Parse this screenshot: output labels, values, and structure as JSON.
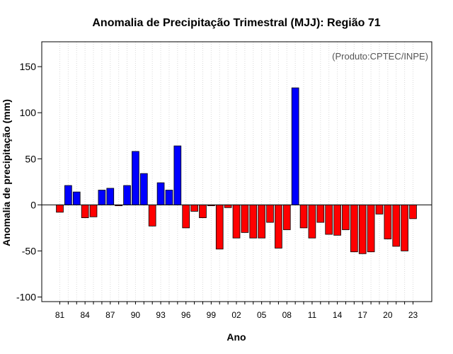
{
  "chart_data": {
    "type": "bar",
    "title": "Anomalia de Precipitação Trimestral (MJJ): Região 71",
    "xlabel": "Ano",
    "ylabel": "Anomalia de precipitação (mm)",
    "credit": "(Produto:CPTEC/INPE)",
    "ylim": [
      -105,
      177
    ],
    "yticks": [
      -100,
      -50,
      0,
      50,
      100,
      150
    ],
    "positive_color": "#0000ff",
    "negative_color": "#ff0000",
    "years": [
      1981,
      1982,
      1983,
      1984,
      1985,
      1986,
      1987,
      1988,
      1989,
      1990,
      1991,
      1992,
      1993,
      1994,
      1995,
      1996,
      1997,
      1998,
      1999,
      2000,
      2001,
      2002,
      2003,
      2004,
      2005,
      2006,
      2007,
      2008,
      2009,
      2010,
      2011,
      2012,
      2013,
      2014,
      2015,
      2016,
      2017,
      2018,
      2019,
      2020,
      2021,
      2022,
      2023
    ],
    "values": [
      -8,
      21,
      14,
      -14,
      -13,
      16,
      18,
      -1,
      21,
      58,
      34,
      -23,
      24,
      16,
      64,
      -25,
      -7,
      -14,
      -1,
      -48,
      -3,
      -36,
      -30,
      -36,
      -36,
      -19,
      -47,
      -27,
      127,
      -25,
      -36,
      -19,
      -32,
      -33,
      -27,
      -51,
      -53,
      -51,
      -10,
      -37,
      -45,
      -50,
      -15
    ],
    "xtick_labels": [
      "81",
      "84",
      "87",
      "90",
      "93",
      "96",
      "99",
      "02",
      "05",
      "08",
      "11",
      "14",
      "17",
      "20",
      "23"
    ]
  }
}
